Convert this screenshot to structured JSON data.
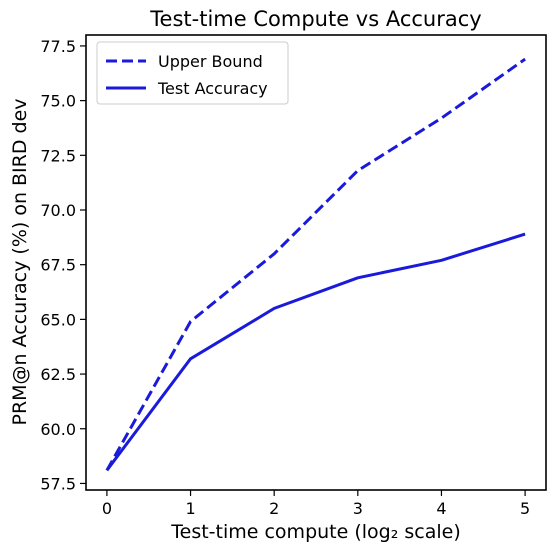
{
  "chart_data": {
    "type": "line",
    "title": "Test-time Compute vs Accuracy",
    "xlabel": "Test-time compute (log₂ scale)",
    "ylabel": "PRM@n Accuracy (%) on BIRD dev",
    "x": [
      0,
      1,
      2,
      3,
      4,
      5
    ],
    "xlim": [
      -0.25,
      5.25
    ],
    "ylim": [
      57.2,
      78.0
    ],
    "xticks": [
      0,
      1,
      2,
      3,
      4,
      5
    ],
    "xtick_labels": [
      "0",
      "1",
      "2",
      "3",
      "4",
      "5"
    ],
    "yticks": [
      57.5,
      60.0,
      62.5,
      65.0,
      67.5,
      70.0,
      72.5,
      75.0,
      77.5
    ],
    "ytick_labels": [
      "57.5",
      "60.0",
      "62.5",
      "65.0",
      "67.5",
      "70.0",
      "72.5",
      "75.0",
      "77.5"
    ],
    "grid": false,
    "legend_position": "top-left",
    "series": [
      {
        "name": "Upper Bound",
        "values": [
          58.1,
          64.9,
          68.0,
          71.8,
          74.2,
          76.9
        ],
        "color": "#1a1adb",
        "style": "dashed"
      },
      {
        "name": "Test Accuracy",
        "values": [
          58.1,
          63.2,
          65.5,
          66.9,
          67.7,
          68.9
        ],
        "color": "#1a1adb",
        "style": "solid"
      }
    ]
  }
}
